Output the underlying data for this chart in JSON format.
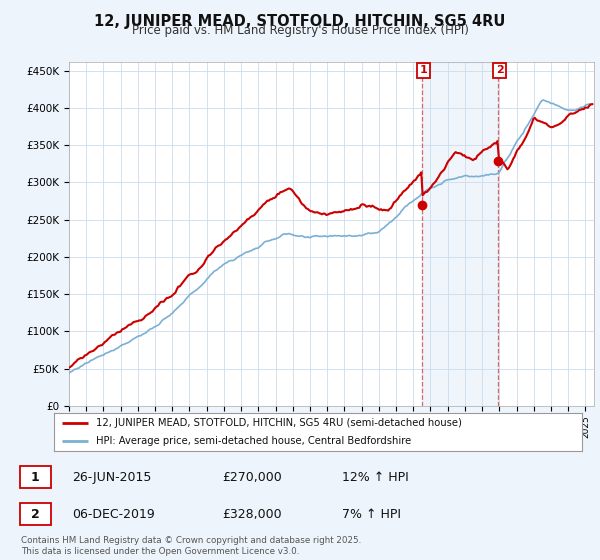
{
  "title": "12, JUNIPER MEAD, STOTFOLD, HITCHIN, SG5 4RU",
  "subtitle": "Price paid vs. HM Land Registry's House Price Index (HPI)",
  "ylabel_ticks": [
    "£0",
    "£50K",
    "£100K",
    "£150K",
    "£200K",
    "£250K",
    "£300K",
    "£350K",
    "£400K",
    "£450K"
  ],
  "ytick_values": [
    0,
    50000,
    100000,
    150000,
    200000,
    250000,
    300000,
    350000,
    400000,
    450000
  ],
  "ylim": [
    0,
    462000
  ],
  "xlim_start": 1995,
  "xlim_end": 2025.5,
  "hpi_color": "#7bafd4",
  "hpi_fill_color": "#d6e8f5",
  "price_color": "#cc0000",
  "sale1_date": 2015.48,
  "sale1_price": 270000,
  "sale2_date": 2019.92,
  "sale2_price": 328000,
  "legend_line1": "12, JUNIPER MEAD, STOTFOLD, HITCHIN, SG5 4RU (semi-detached house)",
  "legend_line2": "HPI: Average price, semi-detached house, Central Bedfordshire",
  "annotation1_date": "26-JUN-2015",
  "annotation1_price": "£270,000",
  "annotation1_hpi": "12% ↑ HPI",
  "annotation2_date": "06-DEC-2019",
  "annotation2_price": "£328,000",
  "annotation2_hpi": "7% ↑ HPI",
  "footer": "Contains HM Land Registry data © Crown copyright and database right 2025.\nThis data is licensed under the Open Government Licence v3.0.",
  "background_color": "#eef4fb",
  "plot_bg_color": "#ffffff",
  "grid_color": "#ccddee"
}
